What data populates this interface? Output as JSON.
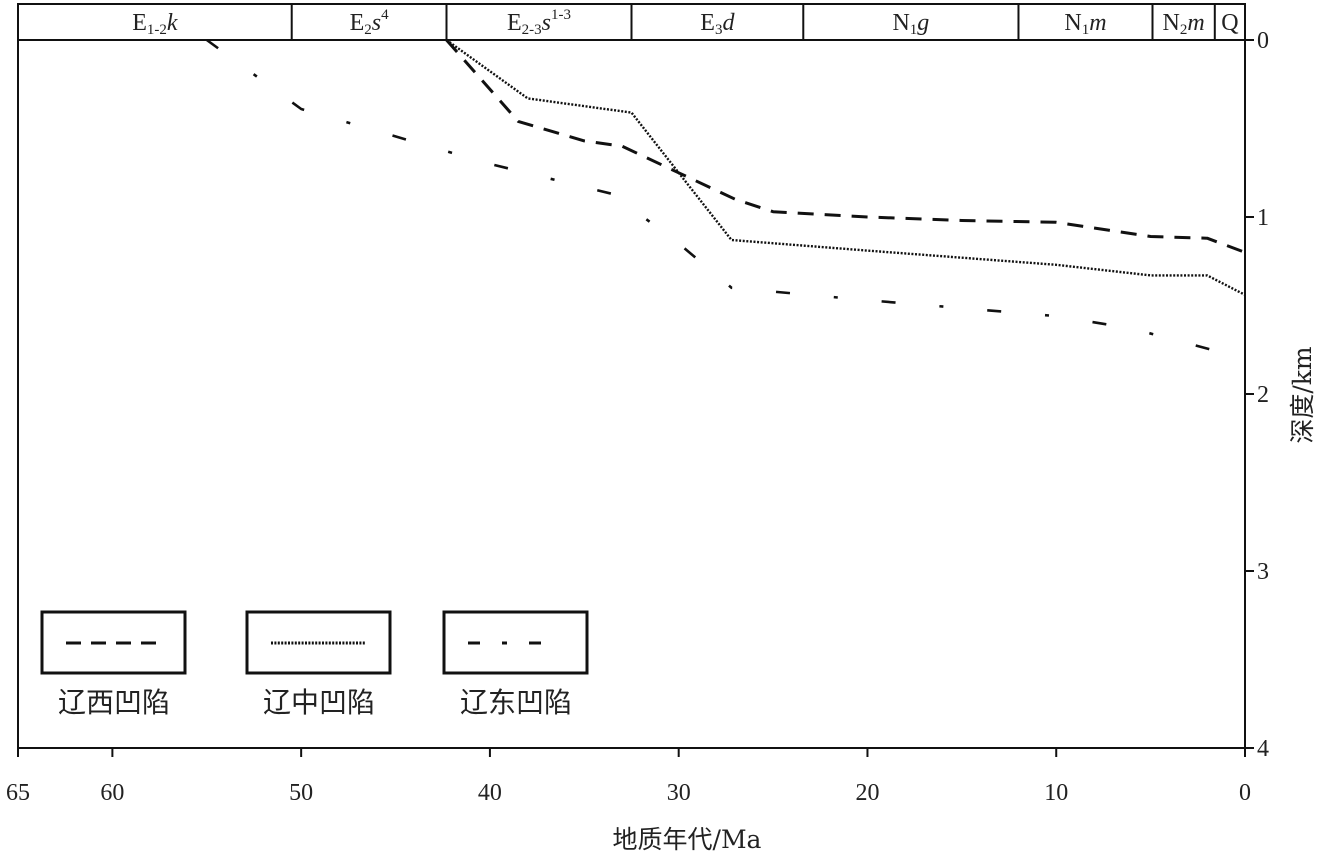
{
  "chart_data": {
    "type": "line",
    "xlabel": "地质年代/Ma",
    "ylabel": "深度/km",
    "xlim": [
      65,
      0
    ],
    "ylim": [
      0,
      4
    ],
    "x_ticks": [
      65,
      60,
      50,
      40,
      30,
      20,
      10,
      0
    ],
    "y_ticks": [
      0,
      1,
      2,
      3,
      4
    ],
    "grid": false,
    "legend_position": "bottom-left",
    "strata": [
      {
        "base": "E",
        "sub": "1-2",
        "sup": "",
        "suffix": "k",
        "start": 65,
        "end": 50.5
      },
      {
        "base": "E",
        "sub": "2",
        "sup": "4",
        "suffix": "s",
        "start": 50.5,
        "end": 42.3
      },
      {
        "base": "E",
        "sub": "2-3",
        "sup": "1-3",
        "suffix": "s",
        "start": 42.3,
        "end": 32.5
      },
      {
        "base": "E",
        "sub": "3",
        "sup": "",
        "suffix": "d",
        "start": 32.5,
        "end": 23.4
      },
      {
        "base": "N",
        "sub": "1",
        "sup": "",
        "suffix": "g",
        "start": 23.4,
        "end": 12
      },
      {
        "base": "N",
        "sub": "1",
        "sup": "",
        "suffix": "m",
        "start": 12,
        "end": 4.9
      },
      {
        "base": "N",
        "sub": "2",
        "sup": "",
        "suffix": "m",
        "start": 4.9,
        "end": 1.6
      },
      {
        "base": "Q",
        "sub": "",
        "sup": "",
        "suffix": "",
        "start": 1.6,
        "end": 0
      }
    ],
    "series": [
      {
        "name": "辽西凹陷",
        "style": "dashed",
        "points": [
          [
            42.3,
            0.0
          ],
          [
            38.5,
            0.46
          ],
          [
            35,
            0.57
          ],
          [
            33,
            0.6
          ],
          [
            30,
            0.75
          ],
          [
            27,
            0.9
          ],
          [
            25,
            0.97
          ],
          [
            20,
            1.0
          ],
          [
            15,
            1.02
          ],
          [
            10,
            1.03
          ],
          [
            5,
            1.11
          ],
          [
            2,
            1.12
          ],
          [
            0,
            1.2
          ]
        ]
      },
      {
        "name": "辽中凹陷",
        "style": "dotted",
        "points": [
          [
            42.3,
            0.0
          ],
          [
            38,
            0.33
          ],
          [
            32.5,
            0.41
          ],
          [
            30,
            0.75
          ],
          [
            27.2,
            1.13
          ],
          [
            20,
            1.19
          ],
          [
            10,
            1.27
          ],
          [
            5,
            1.33
          ],
          [
            2,
            1.33
          ],
          [
            0,
            1.44
          ]
        ]
      },
      {
        "name": "辽东凹陷",
        "style": "dashdot",
        "points": [
          [
            55,
            0.0
          ],
          [
            50,
            0.39
          ],
          [
            40,
            0.7
          ],
          [
            33.5,
            0.87
          ],
          [
            30,
            1.15
          ],
          [
            27.2,
            1.4
          ],
          [
            20,
            1.47
          ],
          [
            10,
            1.56
          ],
          [
            6,
            1.63
          ],
          [
            0,
            1.8
          ]
        ]
      }
    ]
  }
}
